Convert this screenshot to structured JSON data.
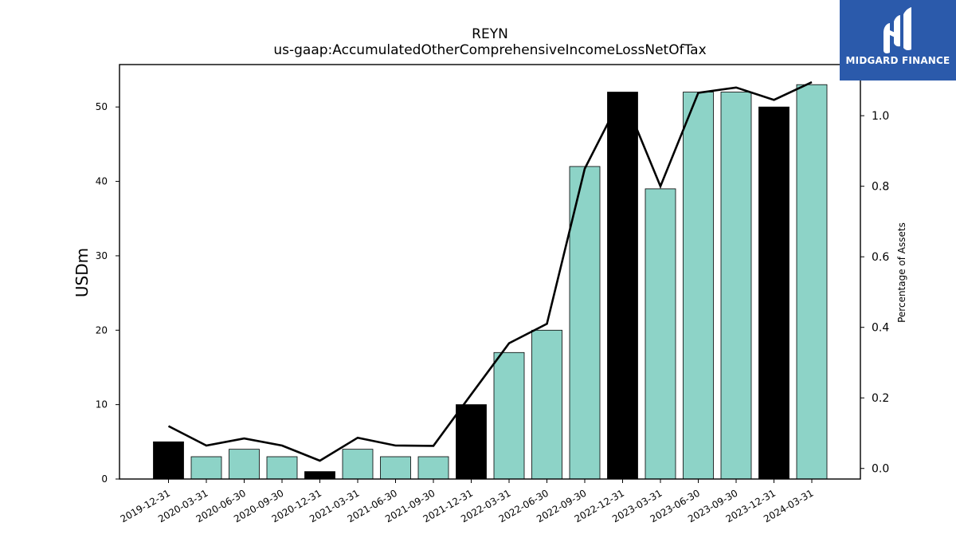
{
  "chart_data": {
    "type": "bar",
    "title": "REYN",
    "subtitle": "us-gaap:AccumulatedOtherComprehensiveIncomeLossNetOfTax",
    "ylabel": "USDm",
    "y2label": "Percentage of Assets",
    "categories": [
      "2019-12-31",
      "2020-03-31",
      "2020-06-30",
      "2020-09-30",
      "2020-12-31",
      "2021-03-31",
      "2021-06-30",
      "2021-09-30",
      "2021-12-31",
      "2022-03-31",
      "2022-06-30",
      "2022-09-30",
      "2022-12-31",
      "2023-03-31",
      "2023-06-30",
      "2023-09-30",
      "2023-12-31",
      "2024-03-31"
    ],
    "values": [
      5,
      3,
      4,
      3,
      1,
      4,
      3,
      3,
      10,
      17,
      20,
      42,
      52,
      39,
      52,
      52,
      50,
      53
    ],
    "bar_colors": [
      "#000000",
      "#8dd3c7",
      "#8dd3c7",
      "#8dd3c7",
      "#000000",
      "#8dd3c7",
      "#8dd3c7",
      "#8dd3c7",
      "#000000",
      "#8dd3c7",
      "#8dd3c7",
      "#8dd3c7",
      "#000000",
      "#8dd3c7",
      "#8dd3c7",
      "#8dd3c7",
      "#000000",
      "#8dd3c7"
    ],
    "line_values": [
      0.12,
      0.065,
      0.085,
      0.065,
      0.022,
      0.087,
      0.065,
      0.064,
      0.21,
      0.355,
      0.41,
      0.85,
      1.06,
      0.8,
      1.065,
      1.08,
      1.045,
      1.095
    ],
    "ylim": [
      0,
      55.7
    ],
    "y2lim": [
      -0.03,
      1.145
    ],
    "yticks": [
      0,
      10,
      20,
      30,
      40,
      50
    ],
    "y2ticks": [
      "0.0",
      "0.2",
      "0.4",
      "0.6",
      "0.8",
      "1.0"
    ],
    "y2tick_values": [
      0,
      0.2,
      0.4,
      0.6,
      0.8,
      1.0
    ],
    "line_color": "#000000"
  },
  "logo": {
    "text": "MIDGARD FINANCE",
    "color": "#2b5aab"
  }
}
